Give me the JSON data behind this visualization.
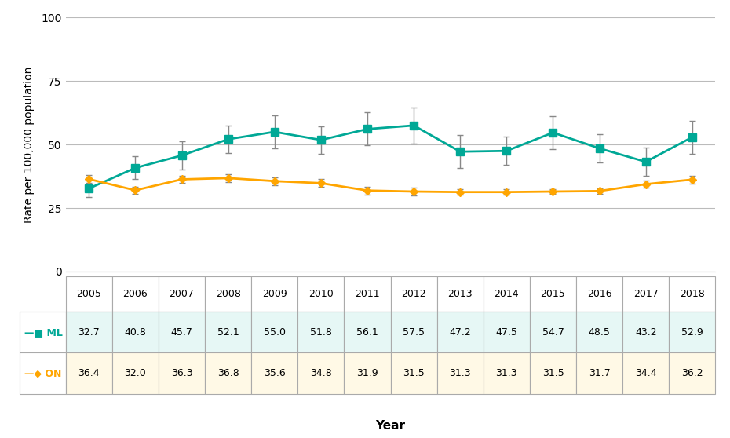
{
  "years": [
    2005,
    2006,
    2007,
    2008,
    2009,
    2010,
    2011,
    2012,
    2013,
    2014,
    2015,
    2016,
    2017,
    2018
  ],
  "ML_values": [
    32.7,
    40.8,
    45.7,
    52.1,
    55.0,
    51.8,
    56.1,
    57.5,
    47.2,
    47.5,
    54.7,
    48.5,
    43.2,
    52.9
  ],
  "ON_values": [
    36.4,
    32.0,
    36.3,
    36.8,
    35.6,
    34.8,
    31.9,
    31.5,
    31.3,
    31.3,
    31.5,
    31.7,
    34.4,
    36.2
  ],
  "ML_errors": [
    3.5,
    4.5,
    5.5,
    5.5,
    6.5,
    5.5,
    6.5,
    7.0,
    6.5,
    5.5,
    6.5,
    5.5,
    5.5,
    6.5
  ],
  "ON_errors": [
    1.5,
    1.5,
    1.5,
    1.5,
    1.5,
    1.5,
    1.5,
    1.5,
    1.0,
    1.0,
    1.0,
    1.0,
    1.5,
    1.5
  ],
  "ML_color": "#00A896",
  "ON_color": "#FFA500",
  "ML_label": "ML",
  "ON_label": "ON",
  "ylabel": "Rate per 100,000 population",
  "xlabel": "Year",
  "ylim": [
    0,
    100
  ],
  "yticks": [
    0,
    25,
    50,
    75,
    100
  ],
  "background_color": "#ffffff",
  "grid_color": "#bbbbbb",
  "table_border_color": "#aaaaaa",
  "ecolor": "#888888"
}
